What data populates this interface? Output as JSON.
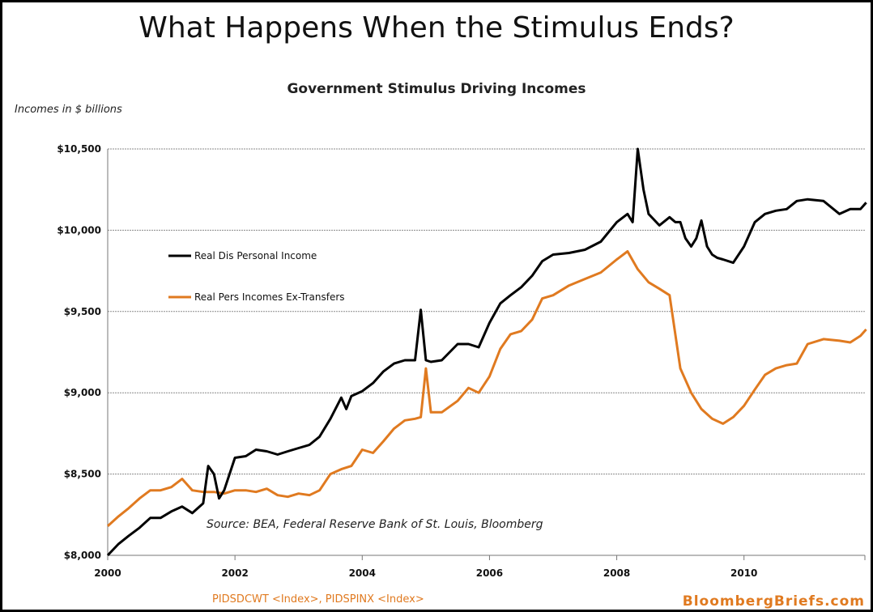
{
  "chart_data": {
    "type": "line",
    "title": "What Happens When the Stimulus Ends?",
    "subtitle": "Government Stimulus Driving Incomes",
    "ylabel": "Incomes  in $ billions",
    "source": "Source: BEA,  Federal Reserve Bank of St. Louis, Bloomberg",
    "tickers": "PIDSDCWT <Index>, PIDSPINX <Index>",
    "brand": "BloombergBriefs.com",
    "ylim": [
      8000,
      10500
    ],
    "xlim": [
      2000,
      2011.9
    ],
    "y_ticks": [
      "$8,000",
      "$8,500",
      "$9,000",
      "$9,500",
      "$10,000",
      "$10,500"
    ],
    "y_tick_values": [
      8000,
      8500,
      9000,
      9500,
      10000,
      10500
    ],
    "x_ticks": [
      "2000",
      "2002",
      "2004",
      "2006",
      "2008",
      "2010"
    ],
    "x_tick_values": [
      2000,
      2002,
      2004,
      2006,
      2008,
      2010
    ],
    "grid": true,
    "legend_position": "left",
    "colors": {
      "black": "#000000",
      "orange": "#e07a20",
      "grid": "#888888"
    },
    "series": [
      {
        "name": "Real Dis Personal Income",
        "color": "#000000",
        "x": [
          2000.0,
          2000.17,
          2000.33,
          2000.5,
          2000.67,
          2000.83,
          2001.0,
          2001.17,
          2001.33,
          2001.5,
          2001.58,
          2001.67,
          2001.75,
          2001.83,
          2002.0,
          2002.17,
          2002.33,
          2002.5,
          2002.67,
          2002.83,
          2003.0,
          2003.17,
          2003.33,
          2003.5,
          2003.67,
          2003.75,
          2003.83,
          2004.0,
          2004.17,
          2004.33,
          2004.5,
          2004.67,
          2004.83,
          2004.92,
          2005.0,
          2005.08,
          2005.25,
          2005.5,
          2005.67,
          2005.83,
          2006.0,
          2006.17,
          2006.33,
          2006.5,
          2006.67,
          2006.83,
          2007.0,
          2007.25,
          2007.5,
          2007.75,
          2008.0,
          2008.17,
          2008.25,
          2008.33,
          2008.42,
          2008.5,
          2008.67,
          2008.83,
          2008.92,
          2009.0,
          2009.08,
          2009.17,
          2009.25,
          2009.33,
          2009.42,
          2009.5,
          2009.58,
          2009.67,
          2009.83,
          2010.0,
          2010.17,
          2010.33,
          2010.5,
          2010.67,
          2010.83,
          2011.0,
          2011.25,
          2011.5,
          2011.67,
          2011.83,
          2011.92
        ],
        "y": [
          8000,
          8070,
          8120,
          8170,
          8230,
          8230,
          8270,
          8300,
          8260,
          8320,
          8550,
          8500,
          8350,
          8400,
          8600,
          8610,
          8650,
          8640,
          8620,
          8640,
          8660,
          8680,
          8730,
          8840,
          8970,
          8900,
          8980,
          9010,
          9060,
          9130,
          9180,
          9200,
          9200,
          9510,
          9200,
          9190,
          9200,
          9300,
          9300,
          9280,
          9430,
          9550,
          9600,
          9650,
          9720,
          9810,
          9850,
          9860,
          9880,
          9930,
          10050,
          10100,
          10050,
          10500,
          10250,
          10100,
          10030,
          10080,
          10050,
          10050,
          9950,
          9900,
          9950,
          10060,
          9900,
          9850,
          9830,
          9820,
          9800,
          9900,
          10050,
          10100,
          10120,
          10130,
          10180,
          10190,
          10180,
          10100,
          10130,
          10130,
          10170
        ]
      },
      {
        "name": "Real Pers Incomes Ex-Transfers",
        "color": "#e07a20",
        "x": [
          2000.0,
          2000.17,
          2000.33,
          2000.5,
          2000.67,
          2000.83,
          2001.0,
          2001.17,
          2001.33,
          2001.5,
          2001.67,
          2001.83,
          2002.0,
          2002.17,
          2002.33,
          2002.5,
          2002.67,
          2002.83,
          2003.0,
          2003.17,
          2003.33,
          2003.5,
          2003.67,
          2003.83,
          2004.0,
          2004.17,
          2004.33,
          2004.5,
          2004.67,
          2004.83,
          2004.92,
          2005.0,
          2005.08,
          2005.25,
          2005.5,
          2005.67,
          2005.83,
          2006.0,
          2006.17,
          2006.33,
          2006.5,
          2006.67,
          2006.83,
          2007.0,
          2007.25,
          2007.5,
          2007.75,
          2008.0,
          2008.17,
          2008.33,
          2008.5,
          2008.67,
          2008.83,
          2009.0,
          2009.17,
          2009.33,
          2009.5,
          2009.67,
          2009.83,
          2010.0,
          2010.17,
          2010.33,
          2010.5,
          2010.67,
          2010.83,
          2011.0,
          2011.25,
          2011.5,
          2011.67,
          2011.83,
          2011.92
        ],
        "y": [
          8180,
          8240,
          8290,
          8350,
          8400,
          8400,
          8420,
          8470,
          8400,
          8390,
          8390,
          8380,
          8400,
          8400,
          8390,
          8410,
          8370,
          8360,
          8380,
          8370,
          8400,
          8500,
          8530,
          8550,
          8650,
          8630,
          8700,
          8780,
          8830,
          8840,
          8850,
          9150,
          8880,
          8880,
          8950,
          9030,
          9000,
          9100,
          9270,
          9360,
          9380,
          9450,
          9580,
          9600,
          9660,
          9700,
          9740,
          9820,
          9870,
          9760,
          9680,
          9640,
          9600,
          9150,
          9000,
          8900,
          8840,
          8810,
          8850,
          8920,
          9020,
          9110,
          9150,
          9170,
          9180,
          9300,
          9330,
          9320,
          9310,
          9350,
          9390
        ]
      }
    ]
  }
}
